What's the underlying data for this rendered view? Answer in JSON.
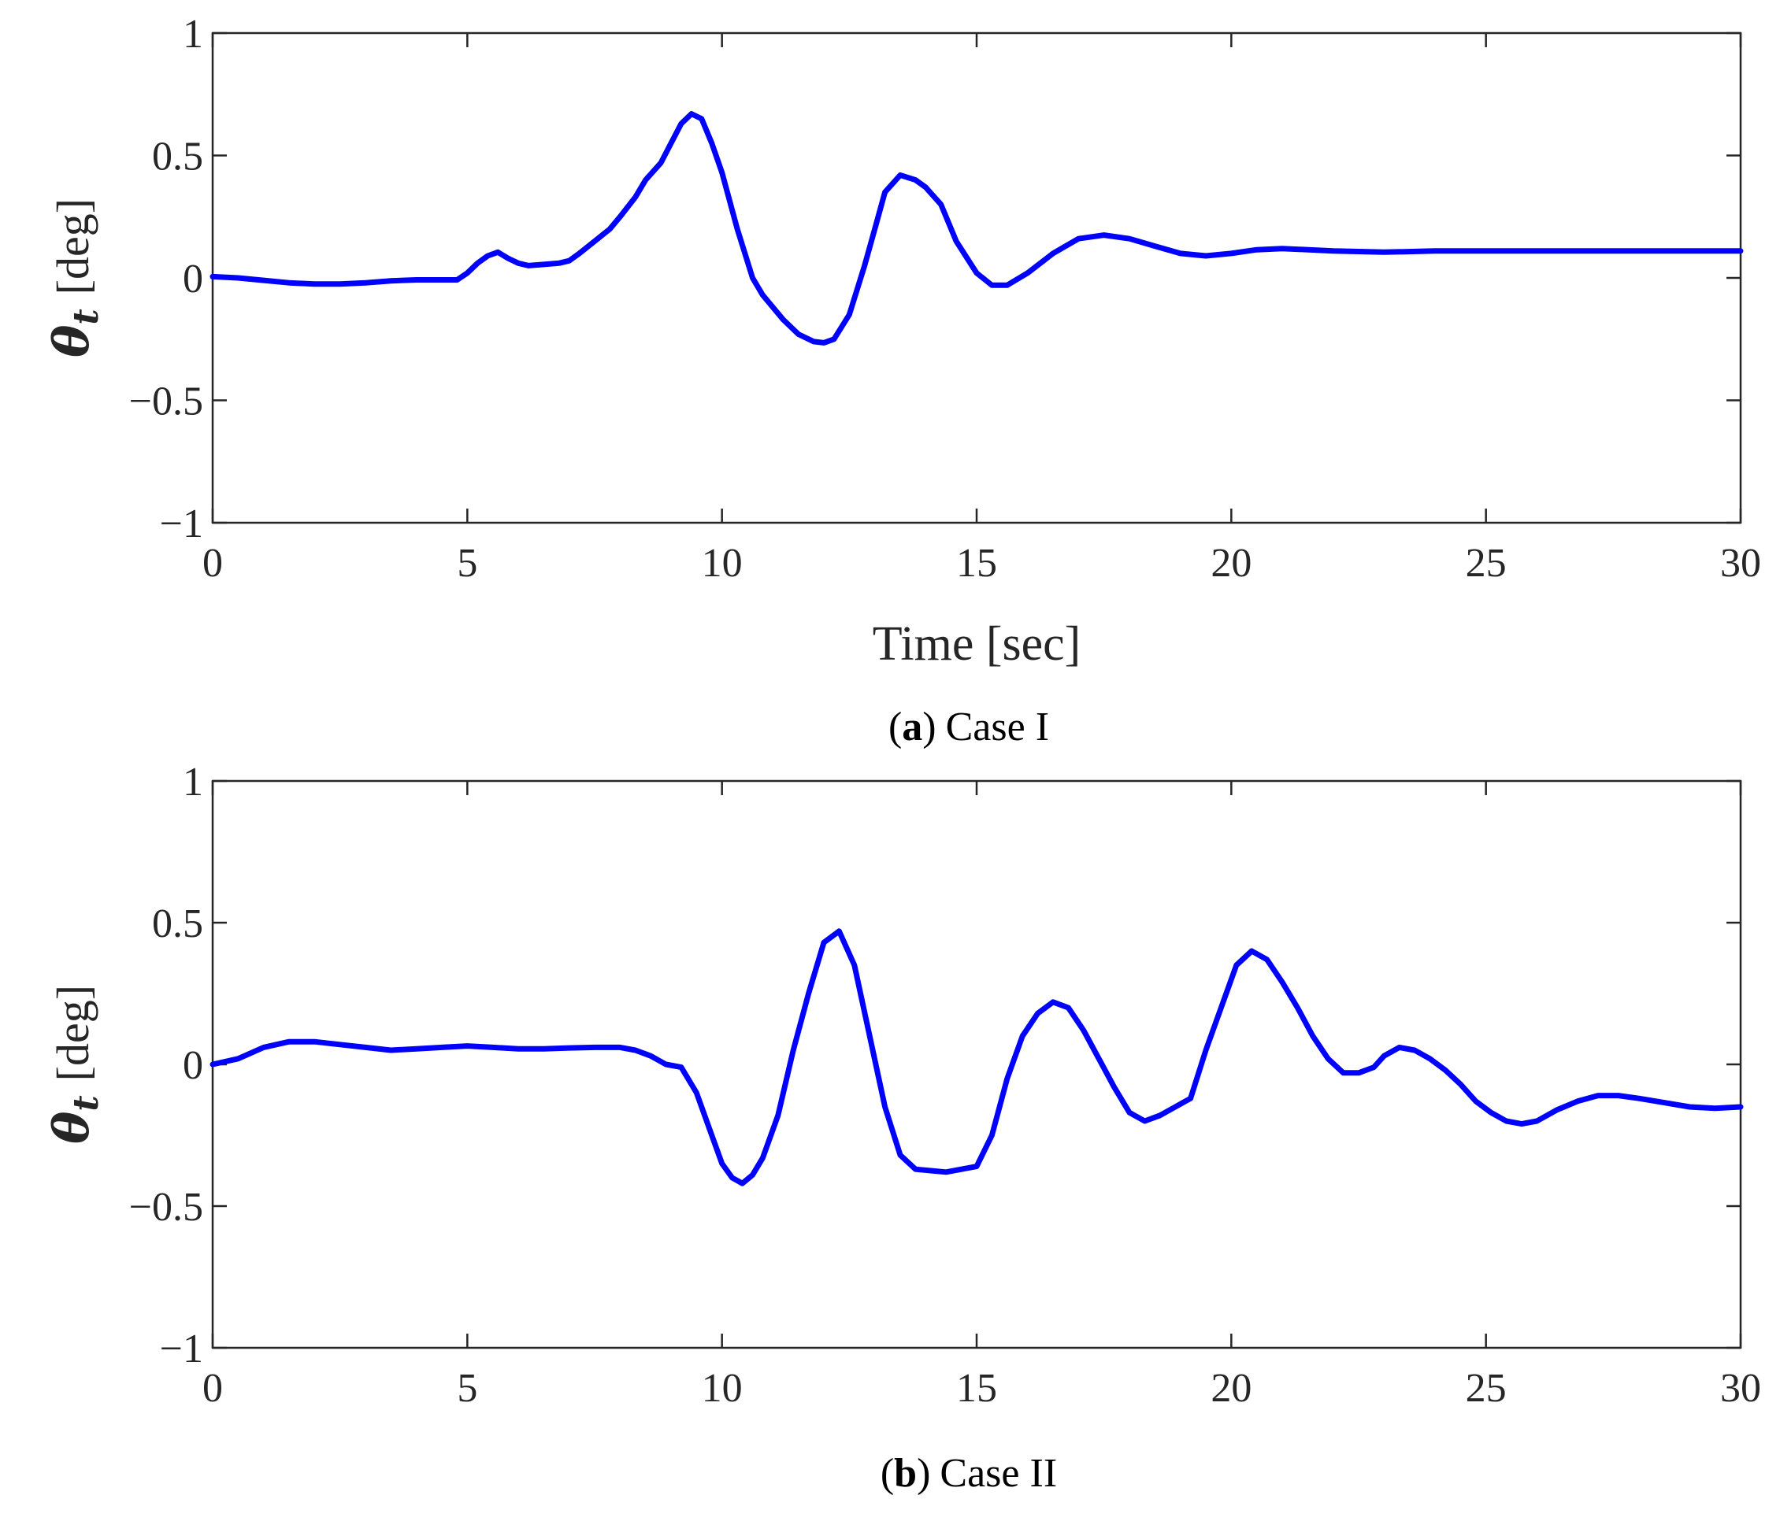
{
  "chart_data": [
    {
      "type": "line",
      "panel_letter": "a",
      "caption": "Case I",
      "xlabel": "Time [sec]",
      "ylabel_symbol": "θ",
      "ylabel_subscript": "t",
      "ylabel_unit": "[deg]",
      "xlim": [
        0,
        30
      ],
      "ylim": [
        -1,
        1
      ],
      "xticks": [
        0,
        5,
        10,
        15,
        20,
        25,
        30
      ],
      "xtick_labels": [
        "0",
        "5",
        "10",
        "15",
        "20",
        "25",
        "30"
      ],
      "yticks": [
        1,
        0.5,
        0,
        -0.5,
        -1
      ],
      "ytick_labels": [
        "1",
        "0.5",
        "0",
        "−0.5",
        "−1"
      ],
      "grid": false,
      "color": "#0000ff",
      "series": [
        {
          "x": [
            0,
            0.5,
            1,
            1.5,
            2,
            2.5,
            3,
            3.5,
            4,
            4.5,
            4.8,
            5.0,
            5.2,
            5.4,
            5.6,
            5.8,
            6.0,
            6.2,
            6.5,
            6.8,
            7.0,
            7.2,
            7.5,
            7.8,
            8.0,
            8.3,
            8.5,
            8.8,
            9.0,
            9.2,
            9.4,
            9.6,
            9.8,
            10.0,
            10.3,
            10.6,
            10.8,
            11.0,
            11.2,
            11.5,
            11.8,
            12.0,
            12.2,
            12.5,
            12.8,
            13.0,
            13.2,
            13.5,
            13.8,
            14.0,
            14.3,
            14.6,
            15.0,
            15.3,
            15.6,
            16.0,
            16.5,
            17.0,
            17.5,
            18.0,
            18.5,
            19.0,
            19.5,
            20.0,
            20.5,
            21.0,
            22.0,
            23.0,
            24.0,
            25.0,
            26.0,
            27.0,
            28.0,
            29.0,
            30.0
          ],
          "y": [
            0.005,
            0.0,
            -0.01,
            -0.02,
            -0.025,
            -0.025,
            -0.02,
            -0.012,
            -0.008,
            -0.008,
            -0.008,
            0.02,
            0.06,
            0.09,
            0.105,
            0.08,
            0.06,
            0.05,
            0.055,
            0.06,
            0.07,
            0.1,
            0.15,
            0.2,
            0.25,
            0.33,
            0.4,
            0.47,
            0.55,
            0.63,
            0.67,
            0.65,
            0.55,
            0.43,
            0.2,
            0.0,
            -0.07,
            -0.12,
            -0.17,
            -0.23,
            -0.26,
            -0.265,
            -0.25,
            -0.15,
            0.05,
            0.2,
            0.35,
            0.42,
            0.4,
            0.37,
            0.3,
            0.15,
            0.02,
            -0.03,
            -0.03,
            0.02,
            0.1,
            0.16,
            0.175,
            0.16,
            0.13,
            0.1,
            0.09,
            0.1,
            0.115,
            0.12,
            0.11,
            0.105,
            0.11,
            0.11,
            0.11,
            0.11,
            0.11,
            0.11,
            0.11
          ]
        }
      ]
    },
    {
      "type": "line",
      "panel_letter": "b",
      "caption": "Case II",
      "xlabel": "",
      "ylabel_symbol": "θ",
      "ylabel_subscript": "t",
      "ylabel_unit": "[deg]",
      "xlim": [
        0,
        30
      ],
      "ylim": [
        -1,
        1
      ],
      "xticks": [
        0,
        5,
        10,
        15,
        20,
        25,
        30
      ],
      "xtick_labels": [
        "0",
        "5",
        "10",
        "15",
        "20",
        "25",
        "30"
      ],
      "yticks": [
        1,
        0.5,
        0,
        -0.5,
        -1
      ],
      "ytick_labels": [
        "1",
        "0.5",
        "0",
        "−0.5",
        "−1"
      ],
      "grid": false,
      "color": "#0000ff",
      "series": [
        {
          "x": [
            0,
            0.5,
            1.0,
            1.5,
            2.0,
            2.5,
            3.0,
            3.5,
            4.0,
            4.5,
            5.0,
            5.5,
            6.0,
            6.5,
            7.0,
            7.5,
            8.0,
            8.3,
            8.6,
            8.9,
            9.2,
            9.5,
            9.8,
            10.0,
            10.2,
            10.4,
            10.6,
            10.8,
            11.1,
            11.4,
            11.7,
            12.0,
            12.3,
            12.6,
            12.9,
            13.2,
            13.5,
            13.8,
            14.1,
            14.4,
            14.7,
            15.0,
            15.3,
            15.6,
            15.9,
            16.2,
            16.5,
            16.8,
            17.1,
            17.4,
            17.7,
            18.0,
            18.3,
            18.6,
            18.9,
            19.2,
            19.5,
            19.8,
            20.1,
            20.4,
            20.7,
            21.0,
            21.3,
            21.6,
            21.9,
            22.2,
            22.5,
            22.8,
            23.0,
            23.3,
            23.6,
            23.9,
            24.2,
            24.5,
            24.8,
            25.1,
            25.4,
            25.7,
            26.0,
            26.4,
            26.8,
            27.2,
            27.6,
            28.0,
            28.5,
            29.0,
            29.5,
            30.0
          ],
          "y": [
            0.0,
            0.02,
            0.06,
            0.08,
            0.08,
            0.07,
            0.06,
            0.05,
            0.055,
            0.06,
            0.065,
            0.06,
            0.055,
            0.055,
            0.058,
            0.06,
            0.06,
            0.05,
            0.03,
            0.0,
            -0.01,
            -0.1,
            -0.25,
            -0.35,
            -0.4,
            -0.42,
            -0.39,
            -0.33,
            -0.18,
            0.05,
            0.25,
            0.43,
            0.47,
            0.35,
            0.1,
            -0.15,
            -0.32,
            -0.37,
            -0.375,
            -0.38,
            -0.37,
            -0.36,
            -0.25,
            -0.05,
            0.1,
            0.18,
            0.22,
            0.2,
            0.12,
            0.02,
            -0.08,
            -0.17,
            -0.2,
            -0.18,
            -0.15,
            -0.12,
            0.05,
            0.2,
            0.35,
            0.4,
            0.37,
            0.29,
            0.2,
            0.1,
            0.02,
            -0.03,
            -0.03,
            -0.01,
            0.03,
            0.06,
            0.05,
            0.02,
            -0.02,
            -0.07,
            -0.13,
            -0.17,
            -0.2,
            -0.21,
            -0.2,
            -0.16,
            -0.13,
            -0.11,
            -0.11,
            -0.12,
            -0.135,
            -0.15,
            -0.155,
            -0.15
          ]
        }
      ]
    }
  ]
}
